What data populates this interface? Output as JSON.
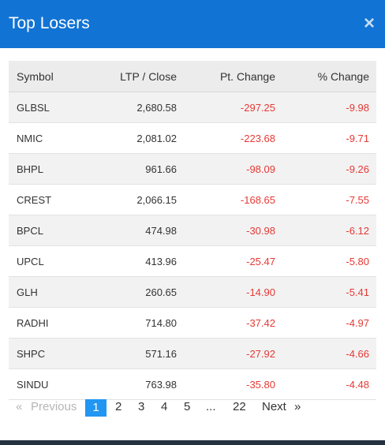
{
  "modal": {
    "title": "Top Losers",
    "close_glyph": "×"
  },
  "table": {
    "headers": [
      "Symbol",
      "LTP / Close",
      "Pt. Change",
      "% Change"
    ],
    "rows": [
      [
        "GLBSL",
        "2,680.58",
        "-297.25",
        "-9.98"
      ],
      [
        "NMIC",
        "2,081.02",
        "-223.68",
        "-9.71"
      ],
      [
        "BHPL",
        "961.66",
        "-98.09",
        "-9.26"
      ],
      [
        "CREST",
        "2,066.15",
        "-168.65",
        "-7.55"
      ],
      [
        "BPCL",
        "474.98",
        "-30.98",
        "-6.12"
      ],
      [
        "UPCL",
        "413.96",
        "-25.47",
        "-5.80"
      ],
      [
        "GLH",
        "260.65",
        "-14.90",
        "-5.41"
      ],
      [
        "RADHI",
        "714.80",
        "-37.42",
        "-4.97"
      ],
      [
        "SHPC",
        "571.16",
        "-27.92",
        "-4.66"
      ],
      [
        "SINDU",
        "763.98",
        "-35.80",
        "-4.48"
      ]
    ]
  },
  "pagination": {
    "first": "«",
    "previous": "Previous",
    "pages": [
      "1",
      "2",
      "3",
      "4",
      "5",
      "...",
      "22"
    ],
    "next": "Next",
    "last": "»",
    "current": "1"
  },
  "colors": {
    "header_bg": "#1173d4",
    "negative": "#e53935",
    "active_page": "#2196f3"
  }
}
